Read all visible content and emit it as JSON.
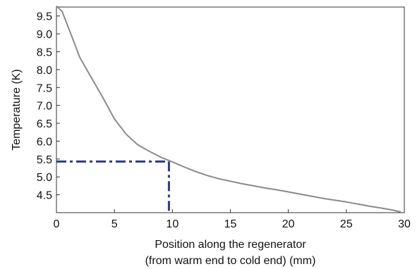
{
  "chart_data": {
    "type": "line",
    "title": "",
    "xlabel_line1": "Position along the regenerator",
    "xlabel_line2": "(from warm end to cold end) (mm)",
    "ylabel": "Temperature (K)",
    "xlim": [
      0,
      30
    ],
    "ylim": [
      4.0,
      9.75
    ],
    "x_ticks": [
      0,
      5,
      10,
      15,
      20,
      25,
      30
    ],
    "x_tick_labels": [
      "0",
      "5",
      "10",
      "15",
      "20",
      "25",
      "30"
    ],
    "y_ticks": [
      4.5,
      5.0,
      5.5,
      6.0,
      6.5,
      7.0,
      7.5,
      8.0,
      8.5,
      9.0,
      9.5
    ],
    "y_tick_labels": [
      "4.5",
      "5.0",
      "5.5",
      "6.0",
      "6.5",
      "7.0",
      "7.5",
      "8.0",
      "8.5",
      "9.0",
      "9.5"
    ],
    "grid": false,
    "series": [
      {
        "color": "#8a8a8a",
        "x": [
          0,
          0.5,
          1,
          1.5,
          2,
          3,
          4,
          5,
          6,
          7,
          8,
          9,
          10,
          11,
          12,
          13,
          14,
          15,
          16,
          17,
          18,
          19,
          20,
          21,
          22,
          23,
          24,
          25,
          26,
          27,
          28,
          29,
          29.7
        ],
        "y": [
          9.78,
          9.62,
          9.2,
          8.78,
          8.35,
          7.78,
          7.22,
          6.62,
          6.2,
          5.9,
          5.72,
          5.55,
          5.42,
          5.28,
          5.15,
          5.04,
          4.95,
          4.88,
          4.81,
          4.75,
          4.69,
          4.64,
          4.58,
          4.52,
          4.46,
          4.4,
          4.35,
          4.3,
          4.24,
          4.18,
          4.13,
          4.07,
          4.02
        ]
      }
    ],
    "annotation": {
      "x": 9.7,
      "y": 5.43,
      "color": "#2e3a8c",
      "style": "dash-dot"
    }
  }
}
